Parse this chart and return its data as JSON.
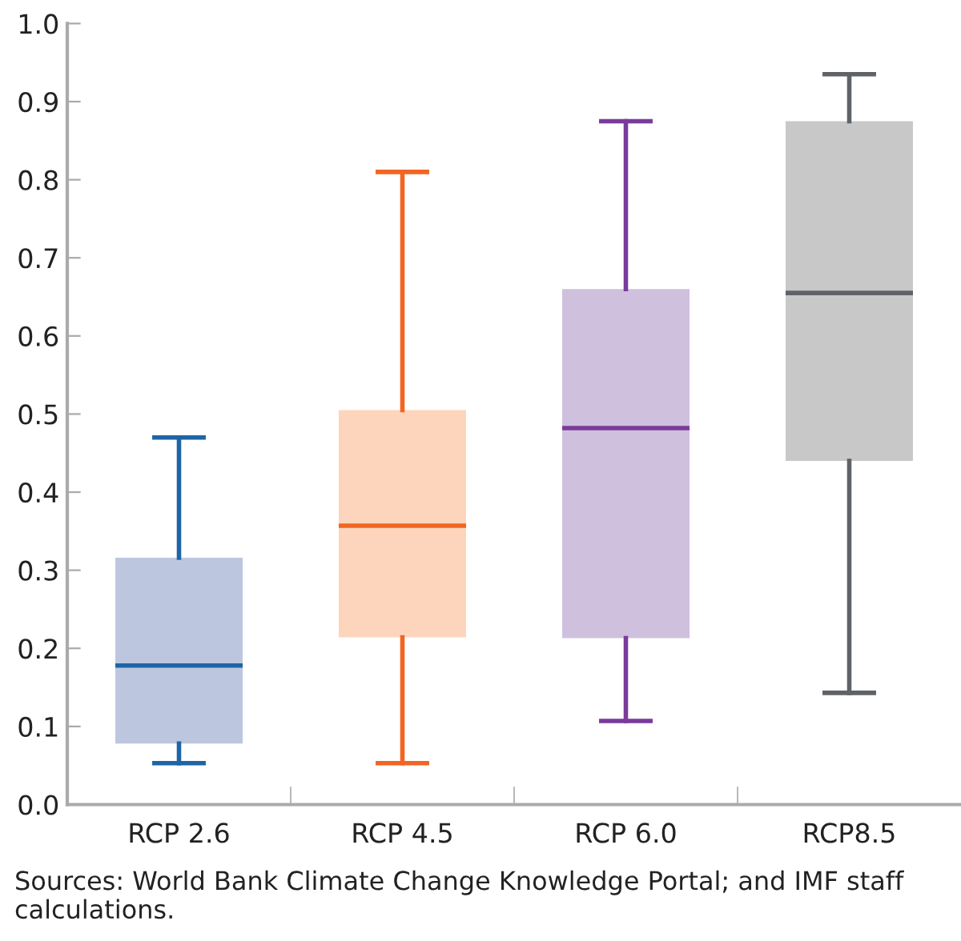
{
  "chart_data": {
    "type": "box",
    "categories": [
      "RCP 2.6",
      "RCP 4.5",
      "RCP 6.0",
      "RCP8.5"
    ],
    "colors": [
      "#1f65a6",
      "#f26522",
      "#7a3b9a",
      "#5f6368"
    ],
    "series": [
      {
        "color": "#bcc7df",
        "boxes": [
          {
            "low": 0.053,
            "q1": 0.078,
            "median": 0.178,
            "q3": 0.316,
            "high": 0.47
          },
          null,
          null,
          null
        ]
      },
      {
        "color": "#fcd5bc",
        "boxes": [
          null,
          {
            "low": 0.053,
            "q1": 0.214,
            "median": 0.357,
            "q3": 0.505,
            "high": 0.81
          },
          null,
          null
        ]
      },
      {
        "color": "#cfc0dd",
        "boxes": [
          null,
          null,
          {
            "low": 0.107,
            "q1": 0.213,
            "median": 0.482,
            "q3": 0.66,
            "high": 0.875
          },
          null
        ]
      },
      {
        "color": "#c8c8c8",
        "boxes": [
          null,
          null,
          null,
          {
            "low": 0.143,
            "q1": 0.44,
            "median": 0.655,
            "q3": 0.875,
            "high": 0.935
          }
        ]
      }
    ],
    "ylim": [
      0,
      1.0
    ],
    "yticks": [
      {
        "value": 0,
        "label": "0.0"
      },
      0.1,
      0.2,
      0.3,
      0.4,
      0.5,
      0.6,
      0.7,
      0.8,
      0.9,
      {
        "value": 1.0,
        "label": "1.0"
      }
    ],
    "grid": false,
    "annotations": [
      "Sources: World Bank Climate Change Knowledge Portal; and IMF staff calculations."
    ]
  }
}
